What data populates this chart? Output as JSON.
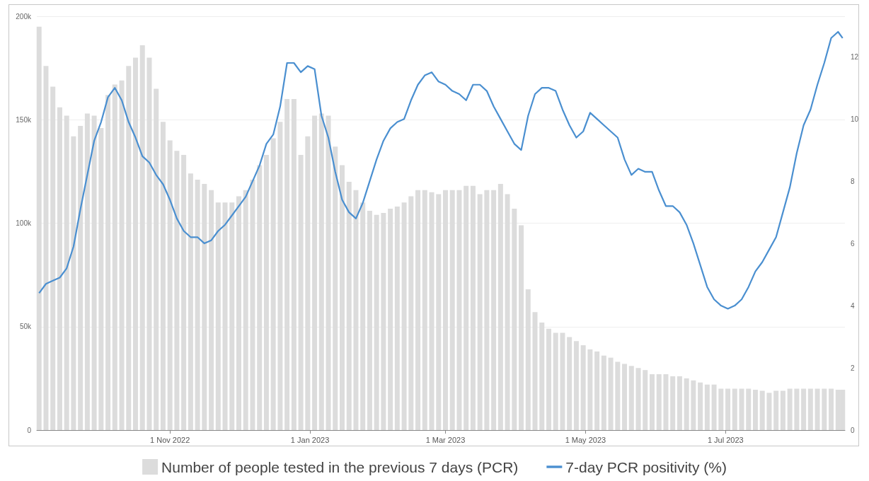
{
  "chart_data": {
    "type": "bar",
    "x": [
      "2022-09-05",
      "2022-09-08",
      "2022-09-11",
      "2022-09-14",
      "2022-09-17",
      "2022-09-20",
      "2022-09-23",
      "2022-09-26",
      "2022-09-29",
      "2022-10-02",
      "2022-10-05",
      "2022-10-08",
      "2022-10-11",
      "2022-10-14",
      "2022-10-17",
      "2022-10-20",
      "2022-10-23",
      "2022-10-26",
      "2022-10-29",
      "2022-11-01",
      "2022-11-04",
      "2022-11-07",
      "2022-11-10",
      "2022-11-13",
      "2022-11-16",
      "2022-11-19",
      "2022-11-22",
      "2022-11-25",
      "2022-11-28",
      "2022-12-01",
      "2022-12-04",
      "2022-12-07",
      "2022-12-10",
      "2022-12-13",
      "2022-12-16",
      "2022-12-19",
      "2022-12-22",
      "2022-12-25",
      "2022-12-28",
      "2022-12-31",
      "2023-01-03",
      "2023-01-06",
      "2023-01-09",
      "2023-01-12",
      "2023-01-15",
      "2023-01-18",
      "2023-01-21",
      "2023-01-24",
      "2023-01-27",
      "2023-01-30",
      "2023-02-02",
      "2023-02-05",
      "2023-02-08",
      "2023-02-11",
      "2023-02-14",
      "2023-02-17",
      "2023-02-20",
      "2023-02-23",
      "2023-02-26",
      "2023-03-01",
      "2023-03-04",
      "2023-03-07",
      "2023-03-10",
      "2023-03-13",
      "2023-03-16",
      "2023-03-19",
      "2023-03-22",
      "2023-03-25",
      "2023-03-28",
      "2023-03-31",
      "2023-04-03",
      "2023-04-06",
      "2023-04-09",
      "2023-04-12",
      "2023-04-15",
      "2023-04-18",
      "2023-04-21",
      "2023-04-24",
      "2023-04-27",
      "2023-04-30",
      "2023-05-03",
      "2023-05-06",
      "2023-05-09",
      "2023-05-12",
      "2023-05-15",
      "2023-05-18",
      "2023-05-21",
      "2023-05-24",
      "2023-05-27",
      "2023-05-30",
      "2023-06-02",
      "2023-06-05",
      "2023-06-08",
      "2023-06-11",
      "2023-06-14",
      "2023-06-17",
      "2023-06-20",
      "2023-06-23",
      "2023-06-26",
      "2023-06-29",
      "2023-07-02",
      "2023-07-05",
      "2023-07-08",
      "2023-07-11",
      "2023-07-14",
      "2023-07-17",
      "2023-07-20",
      "2023-07-23",
      "2023-07-26",
      "2023-07-29",
      "2023-08-01",
      "2023-08-04",
      "2023-08-07",
      "2023-08-10",
      "2023-08-13",
      "2023-08-16",
      "2023-08-19",
      "2023-08-21"
    ],
    "series": [
      {
        "name": "Number of people tested in the previous 7 days (PCR)",
        "color": "#dcdcdc",
        "values": [
          195000,
          176000,
          166000,
          156000,
          152000,
          142000,
          147000,
          153000,
          152000,
          146000,
          162000,
          167000,
          169000,
          176000,
          180000,
          186000,
          180000,
          165000,
          149000,
          140000,
          135000,
          133000,
          124000,
          121000,
          119000,
          116000,
          110000,
          110000,
          110000,
          113000,
          116000,
          121000,
          128000,
          133000,
          141000,
          149000,
          160000,
          160000,
          133000,
          142000,
          152000,
          153000,
          152000,
          137000,
          128000,
          120000,
          116000,
          110000,
          106000,
          104000,
          105000,
          107000,
          108000,
          110000,
          113000,
          116000,
          116000,
          115000,
          114000,
          116000,
          116000,
          116000,
          118000,
          118000,
          114000,
          116000,
          116000,
          119000,
          114000,
          107000,
          99000,
          68000,
          57000,
          52000,
          49000,
          47000,
          47000,
          45000,
          43000,
          41000,
          39000,
          38000,
          36000,
          35000,
          33000,
          32000,
          31000,
          30000,
          29000,
          27000,
          27000,
          27000,
          26000,
          26000,
          25000,
          24000,
          23000,
          22000,
          22000,
          20000,
          20000,
          20000,
          20000,
          20000,
          19500,
          19000,
          18000,
          19000,
          19000,
          20000,
          20000,
          20000,
          20000,
          20000,
          20000,
          20000,
          19500,
          19500
        ]
      },
      {
        "name": "7-day PCR positivity (%)",
        "type": "line",
        "axis": "y2",
        "color": "#4a8fd0",
        "values": [
          4.4,
          4.7,
          4.8,
          4.9,
          5.2,
          5.9,
          7.1,
          8.2,
          9.3,
          9.9,
          10.7,
          11.0,
          10.6,
          9.9,
          9.4,
          8.8,
          8.6,
          8.2,
          7.9,
          7.4,
          6.8,
          6.4,
          6.2,
          6.2,
          6.0,
          6.1,
          6.4,
          6.6,
          6.9,
          7.2,
          7.5,
          8.0,
          8.5,
          9.2,
          9.5,
          10.4,
          11.8,
          11.8,
          11.5,
          11.7,
          11.6,
          10.1,
          9.4,
          8.3,
          7.4,
          7.0,
          6.8,
          7.3,
          8.0,
          8.7,
          9.3,
          9.7,
          9.9,
          10.0,
          10.6,
          11.1,
          11.4,
          11.5,
          11.2,
          11.1,
          10.9,
          10.8,
          10.6,
          11.1,
          11.1,
          10.9,
          10.4,
          10.0,
          9.6,
          9.2,
          9.0,
          10.1,
          10.8,
          11.0,
          11.0,
          10.9,
          10.3,
          9.8,
          9.4,
          9.6,
          10.2,
          10.0,
          9.8,
          9.6,
          9.4,
          8.7,
          8.2,
          8.4,
          8.3,
          8.3,
          7.7,
          7.2,
          7.2,
          7.0,
          6.6,
          6.0,
          5.3,
          4.6,
          4.2,
          4.0,
          3.9,
          4.0,
          4.2,
          4.6,
          5.1,
          5.4,
          5.8,
          6.2,
          7.0,
          7.8,
          8.9,
          9.8,
          10.3,
          11.1,
          11.8,
          12.6,
          12.8,
          12.6
        ]
      }
    ],
    "xlim": [
      "2022-09-04",
      "2023-08-22"
    ],
    "xticks": [
      {
        "value": "2022-11-01",
        "label": "1 Nov 2022"
      },
      {
        "value": "2023-01-01",
        "label": "1 Jan 2023"
      },
      {
        "value": "2023-03-01",
        "label": "1 Mar 2023"
      },
      {
        "value": "2023-05-01",
        "label": "1 May 2023"
      },
      {
        "value": "2023-07-01",
        "label": "1 Jul 2023"
      }
    ],
    "ylim": [
      0,
      200000
    ],
    "yticks": [
      0,
      {
        "value": 50000,
        "label": "50k"
      },
      {
        "value": 100000,
        "label": "100k"
      },
      {
        "value": 150000,
        "label": "150k"
      },
      {
        "value": 200000,
        "label": "200k"
      }
    ],
    "y2lim": [
      0,
      13.3
    ],
    "y2ticks": [
      0,
      2,
      4,
      6,
      8,
      10,
      12
    ],
    "grid": "y",
    "legend": "bottom"
  }
}
